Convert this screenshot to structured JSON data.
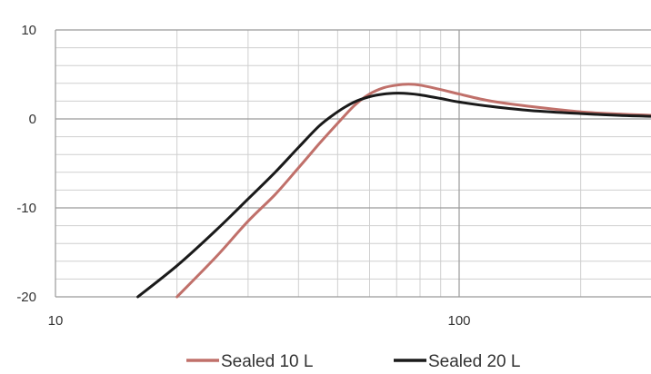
{
  "chart_data": {
    "type": "line",
    "title": "",
    "xlabel": "",
    "ylabel": "",
    "x_scale": "log",
    "xlim": [
      10,
      300
    ],
    "ylim": [
      -20,
      10
    ],
    "x_ticks": [
      10,
      100
    ],
    "x_tick_labels": [
      "10",
      "100"
    ],
    "y_ticks": [
      -20,
      -10,
      0,
      10
    ],
    "y_tick_labels": [
      "-20",
      "-10",
      "0",
      "10"
    ],
    "grid": true,
    "legend_position": "bottom",
    "series": [
      {
        "name": "Sealed 10 L",
        "color": "#c0706a",
        "points": [
          [
            20,
            -20
          ],
          [
            25,
            -15.5
          ],
          [
            30,
            -11.5
          ],
          [
            35,
            -8.5
          ],
          [
            40,
            -5.5
          ],
          [
            45,
            -2.8
          ],
          [
            50,
            -0.5
          ],
          [
            55,
            1.5
          ],
          [
            60,
            2.8
          ],
          [
            65,
            3.5
          ],
          [
            70,
            3.8
          ],
          [
            75,
            3.9
          ],
          [
            80,
            3.8
          ],
          [
            90,
            3.3
          ],
          [
            100,
            2.8
          ],
          [
            120,
            2.0
          ],
          [
            150,
            1.4
          ],
          [
            200,
            0.8
          ],
          [
            250,
            0.55
          ],
          [
            300,
            0.4
          ]
        ]
      },
      {
        "name": "Sealed 20 L",
        "color": "#1a1a1a",
        "points": [
          [
            16,
            -20
          ],
          [
            20,
            -16.5
          ],
          [
            25,
            -12.5
          ],
          [
            30,
            -9
          ],
          [
            35,
            -6
          ],
          [
            40,
            -3.2
          ],
          [
            45,
            -0.8
          ],
          [
            50,
            0.8
          ],
          [
            55,
            1.9
          ],
          [
            60,
            2.5
          ],
          [
            65,
            2.8
          ],
          [
            70,
            2.9
          ],
          [
            75,
            2.85
          ],
          [
            80,
            2.7
          ],
          [
            90,
            2.3
          ],
          [
            100,
            1.9
          ],
          [
            120,
            1.4
          ],
          [
            150,
            0.95
          ],
          [
            200,
            0.6
          ],
          [
            250,
            0.4
          ],
          [
            300,
            0.3
          ]
        ]
      }
    ]
  }
}
